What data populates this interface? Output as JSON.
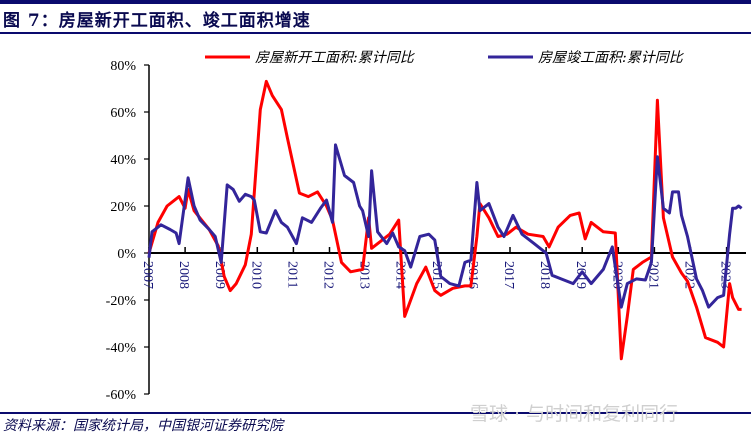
{
  "header": {
    "title": "图 7：房屋新开工面积、竣工面积增速"
  },
  "footer": {
    "source": "资料来源：国家统计局，中国银河证券研究院",
    "watermark": "雪球 · 与时间和复利同行"
  },
  "chart_data": {
    "type": "line",
    "title": "",
    "xlabel": "",
    "ylabel": "",
    "ylim": [
      -60,
      80
    ],
    "yticks": [
      "80%",
      "60%",
      "40%",
      "20%",
      "0%",
      "-20%",
      "-40%",
      "-60%"
    ],
    "ytick_values": [
      80,
      60,
      40,
      20,
      0,
      -20,
      -40,
      -60
    ],
    "xticks": [
      "2007",
      "2008",
      "2009",
      "2010",
      "2011",
      "2012",
      "2013",
      "2014",
      "2015",
      "2016",
      "2017",
      "2018",
      "2019",
      "2020",
      "2021",
      "2022",
      "2023"
    ],
    "legend_position": "top",
    "grid": false,
    "series": [
      {
        "name": "房屋新开工面积:累计同比",
        "color": "#ff0000",
        "points": [
          [
            "2007-01",
            0
          ],
          [
            "2007-04",
            13
          ],
          [
            "2007-07",
            20
          ],
          [
            "2007-11",
            24
          ],
          [
            "2008-01",
            19
          ],
          [
            "2008-02",
            27
          ],
          [
            "2008-04",
            18
          ],
          [
            "2008-09",
            10
          ],
          [
            "2008-12",
            3
          ],
          [
            "2009-02",
            -10
          ],
          [
            "2009-04",
            -16
          ],
          [
            "2009-06",
            -13
          ],
          [
            "2009-09",
            -5
          ],
          [
            "2009-11",
            8
          ],
          [
            "2010-02",
            61
          ],
          [
            "2010-04",
            73
          ],
          [
            "2010-06",
            67
          ],
          [
            "2010-09",
            61
          ],
          [
            "2010-11",
            49
          ],
          [
            "2011-03",
            25.5
          ],
          [
            "2011-06",
            24
          ],
          [
            "2011-09",
            26
          ],
          [
            "2011-12",
            20
          ],
          [
            "2012-02",
            14
          ],
          [
            "2012-05",
            -4
          ],
          [
            "2012-08",
            -8
          ],
          [
            "2012-12",
            -7
          ],
          [
            "2013-02",
            15
          ],
          [
            "2013-03",
            2
          ],
          [
            "2013-06",
            5
          ],
          [
            "2013-09",
            8
          ],
          [
            "2013-12",
            14
          ],
          [
            "2014-02",
            -27
          ],
          [
            "2014-06",
            -13
          ],
          [
            "2014-09",
            -6
          ],
          [
            "2014-12",
            -16
          ],
          [
            "2015-02",
            -18
          ],
          [
            "2015-06",
            -15
          ],
          [
            "2015-10",
            -14
          ],
          [
            "2015-12",
            -14
          ],
          [
            "2016-02",
            7
          ],
          [
            "2016-03",
            21
          ],
          [
            "2016-06",
            15
          ],
          [
            "2016-09",
            7
          ],
          [
            "2016-12",
            8
          ],
          [
            "2017-03",
            11
          ],
          [
            "2017-07",
            8
          ],
          [
            "2017-12",
            7
          ],
          [
            "2018-02",
            2.6
          ],
          [
            "2018-05",
            11
          ],
          [
            "2018-09",
            16
          ],
          [
            "2018-12",
            17
          ],
          [
            "2019-02",
            6
          ],
          [
            "2019-04",
            13
          ],
          [
            "2019-08",
            9
          ],
          [
            "2019-12",
            8.5
          ],
          [
            "2020-02",
            -45
          ],
          [
            "2020-04",
            -27
          ],
          [
            "2020-06",
            -7
          ],
          [
            "2020-09",
            -4
          ],
          [
            "2020-12",
            -1.7
          ],
          [
            "2021-02",
            65
          ],
          [
            "2021-04",
            15
          ],
          [
            "2021-07",
            -1.7
          ],
          [
            "2021-10",
            -8.5
          ],
          [
            "2021-12",
            -12
          ],
          [
            "2022-03",
            -23
          ],
          [
            "2022-06",
            -36
          ],
          [
            "2022-10",
            -38
          ],
          [
            "2022-12",
            -40
          ],
          [
            "2023-02",
            -13
          ],
          [
            "2023-03",
            -19
          ],
          [
            "2023-05",
            -24
          ],
          [
            "2023-06",
            -24
          ]
        ]
      },
      {
        "name": "房屋竣工面积:累计同比",
        "color": "#33259a",
        "points": [
          [
            "2007-01",
            -2
          ],
          [
            "2007-02",
            9
          ],
          [
            "2007-05",
            12
          ],
          [
            "2007-08",
            10
          ],
          [
            "2007-10",
            8.5
          ],
          [
            "2007-11",
            4
          ],
          [
            "2008-02",
            32
          ],
          [
            "2008-04",
            20
          ],
          [
            "2008-06",
            14
          ],
          [
            "2008-09",
            10
          ],
          [
            "2008-11",
            7
          ],
          [
            "2009-01",
            -4
          ],
          [
            "2009-03",
            29
          ],
          [
            "2009-05",
            27
          ],
          [
            "2009-07",
            22
          ],
          [
            "2009-09",
            25
          ],
          [
            "2009-11",
            24
          ],
          [
            "2009-12",
            22.5
          ],
          [
            "2010-02",
            9
          ],
          [
            "2010-04",
            8.5
          ],
          [
            "2010-07",
            18
          ],
          [
            "2010-09",
            13
          ],
          [
            "2010-11",
            11
          ],
          [
            "2011-02",
            4
          ],
          [
            "2011-04",
            15
          ],
          [
            "2011-07",
            13
          ],
          [
            "2011-10",
            19
          ],
          [
            "2011-12",
            22.5
          ],
          [
            "2012-02",
            13
          ],
          [
            "2012-03",
            46
          ],
          [
            "2012-06",
            33
          ],
          [
            "2012-09",
            30
          ],
          [
            "2012-11",
            20
          ],
          [
            "2012-12",
            18
          ],
          [
            "2013-02",
            7
          ],
          [
            "2013-03",
            35
          ],
          [
            "2013-05",
            9
          ],
          [
            "2013-08",
            4
          ],
          [
            "2013-10",
            8.5
          ],
          [
            "2013-12",
            2.6
          ],
          [
            "2014-02",
            1
          ],
          [
            "2014-04",
            -6
          ],
          [
            "2014-07",
            7
          ],
          [
            "2014-10",
            8
          ],
          [
            "2014-12",
            5.5
          ],
          [
            "2015-02",
            -10
          ],
          [
            "2015-05",
            -13
          ],
          [
            "2015-08",
            -14
          ],
          [
            "2015-10",
            -4
          ],
          [
            "2015-12",
            -3
          ],
          [
            "2016-02",
            30
          ],
          [
            "2016-03",
            18
          ],
          [
            "2016-06",
            21
          ],
          [
            "2016-09",
            11
          ],
          [
            "2016-11",
            7
          ],
          [
            "2017-02",
            16
          ],
          [
            "2017-05",
            8
          ],
          [
            "2017-09",
            4
          ],
          [
            "2017-12",
            1
          ],
          [
            "2018-01",
            0
          ],
          [
            "2018-03",
            -9.5
          ],
          [
            "2018-06",
            -11
          ],
          [
            "2018-10",
            -13
          ],
          [
            "2019-01",
            -8
          ],
          [
            "2019-04",
            -13
          ],
          [
            "2019-08",
            -7
          ],
          [
            "2019-11",
            2.6
          ],
          [
            "2020-02",
            -23
          ],
          [
            "2020-04",
            -13
          ],
          [
            "2020-07",
            -11
          ],
          [
            "2020-10",
            -11.5
          ],
          [
            "2020-12",
            -4
          ],
          [
            "2021-02",
            41
          ],
          [
            "2021-04",
            19
          ],
          [
            "2021-06",
            17
          ],
          [
            "2021-07",
            26
          ],
          [
            "2021-09",
            26
          ],
          [
            "2021-10",
            16
          ],
          [
            "2021-12",
            7
          ],
          [
            "2022-03",
            -11
          ],
          [
            "2022-05",
            -16
          ],
          [
            "2022-07",
            -23
          ],
          [
            "2022-10",
            -19
          ],
          [
            "2022-12",
            -18
          ],
          [
            "2023-02",
            8
          ],
          [
            "2023-03",
            19
          ],
          [
            "2023-04",
            19
          ],
          [
            "2023-05",
            20
          ],
          [
            "2023-06",
            19
          ]
        ]
      }
    ]
  }
}
